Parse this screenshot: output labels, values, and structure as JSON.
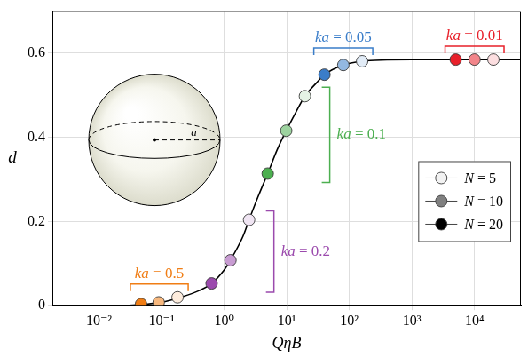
{
  "chart_data": {
    "type": "scatter",
    "x_label": "QηB",
    "y_label": "d",
    "log": "x",
    "grid": true,
    "legend": "right",
    "xlim": [
      0.0018,
      55000
    ],
    "ylim": [
      0,
      0.7
    ],
    "xticks": [
      {
        "value": 0.01,
        "label": "10⁻²"
      },
      {
        "value": 0.1,
        "label": "10⁻¹"
      },
      {
        "value": 1,
        "label": "10⁰"
      },
      {
        "value": 10,
        "label": "10¹"
      },
      {
        "value": 100,
        "label": "10²"
      },
      {
        "value": 1000,
        "label": "10³"
      },
      {
        "value": 10000,
        "label": "10⁴"
      }
    ],
    "yticks": [
      0,
      0.2,
      0.4,
      0.6
    ],
    "series": [
      {
        "name": "N = 5",
        "color": "#f2f2f2",
        "marker": "circle",
        "x": [
          0.18,
          2.5,
          19.5,
          160,
          20000
        ],
        "values": [
          0.02,
          0.204,
          0.498,
          0.581,
          0.585
        ]
      },
      {
        "name": "N = 10",
        "color": "#808080",
        "marker": "circle",
        "x": [
          0.09,
          1.26,
          9.8,
          80,
          10000
        ],
        "values": [
          0.008,
          0.108,
          0.416,
          0.572,
          0.585
        ]
      },
      {
        "name": "N = 20",
        "color": "#000000",
        "marker": "circle",
        "x": [
          0.047,
          0.63,
          4.96,
          40,
          5000
        ],
        "values": [
          0.004,
          0.053,
          0.314,
          0.549,
          0.585
        ]
      },
      {
        "type": "line",
        "color": "#000000",
        "line_style": "solid",
        "x": [
          0.0018,
          0.01,
          0.03,
          0.05,
          0.1,
          0.2,
          0.4,
          0.63,
          1,
          1.26,
          2,
          2.5,
          3.5,
          4.96,
          7,
          9.8,
          14,
          19.5,
          30,
          40,
          80,
          160,
          400,
          1000,
          55000
        ],
        "values": [
          0,
          0,
          0.001,
          0.003,
          0.008,
          0.02,
          0.036,
          0.053,
          0.085,
          0.108,
          0.165,
          0.204,
          0.26,
          0.314,
          0.37,
          0.416,
          0.46,
          0.498,
          0.53,
          0.549,
          0.572,
          0.581,
          0.584,
          0.585,
          0.585
        ]
      }
    ],
    "annotations": [
      {
        "text": "ka = 0.5",
        "color": "#f07d14"
      },
      {
        "text": "ka = 0.2",
        "color": "#9b4aad"
      },
      {
        "text": "ka = 0.1",
        "color": "#4caf50"
      },
      {
        "text": "ka = 0.05",
        "color": "#3a7dc9"
      },
      {
        "text": "ka = 0.01",
        "color": "#e8202a"
      }
    ],
    "inset": {
      "label": "a"
    }
  }
}
